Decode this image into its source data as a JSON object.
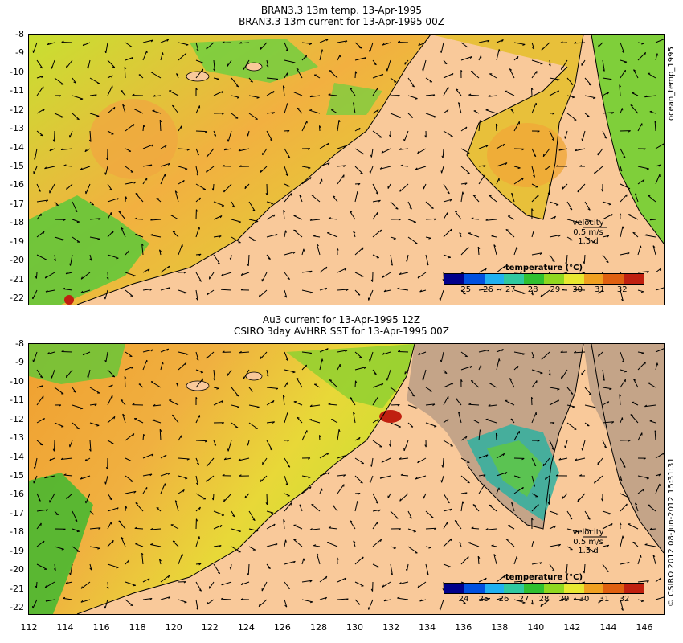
{
  "top_panel": {
    "title_line1": "BRAN3.3 13m temp. 13-Apr-1995",
    "title_line2": "BRAN3.3 13m current for 13-Apr-1995 00Z",
    "side_label": "ocean_temp_1995",
    "velocity_label": "velocity",
    "velocity_speed": "0.5 m/s",
    "velocity_time": "1.5 d",
    "colorbar_title": "temperature (°C)",
    "colorbar_ticks": [
      "25",
      "26",
      "27",
      "28",
      "29",
      "30",
      "31",
      "32"
    ]
  },
  "bottom_panel": {
    "title_line1": "Au3 current for 13-Apr-1995 12Z",
    "title_line2": "CSIRO 3day AVHRR SST for 13-Apr-1995 00Z",
    "side_label": "© CSIRO 2012  08-Jun-2012 15:31:31",
    "velocity_label": "velocity",
    "velocity_speed": "0.5 m/s",
    "velocity_time": "1.5 d",
    "colorbar_title": "temperature (°C)",
    "colorbar_ticks": [
      "24",
      "25",
      "26",
      "27",
      "28",
      "29",
      "30",
      "31",
      "32"
    ]
  },
  "y_axis_labels": [
    "-8",
    "-9",
    "-10",
    "-11",
    "-12",
    "-13",
    "-14",
    "-15",
    "-16",
    "-17",
    "-18",
    "-19",
    "-20",
    "-21",
    "-22"
  ],
  "x_axis_labels": [
    "112",
    "114",
    "116",
    "118",
    "120",
    "122",
    "124",
    "126",
    "128",
    "130",
    "132",
    "134",
    "136",
    "138",
    "140",
    "142",
    "144",
    "146"
  ],
  "colors": {
    "land": "#f9c99a",
    "no_data": "#c4a488",
    "warm": "#f2a93b",
    "mid": "#dde83a",
    "cool": "#4fc43a",
    "coast": "#000000"
  },
  "colorbar_colors": [
    "#00008b",
    "#0050e0",
    "#20b0f0",
    "#30c8a0",
    "#30c030",
    "#90d820",
    "#e8e830",
    "#f0a020",
    "#e06010",
    "#c02010"
  ]
}
